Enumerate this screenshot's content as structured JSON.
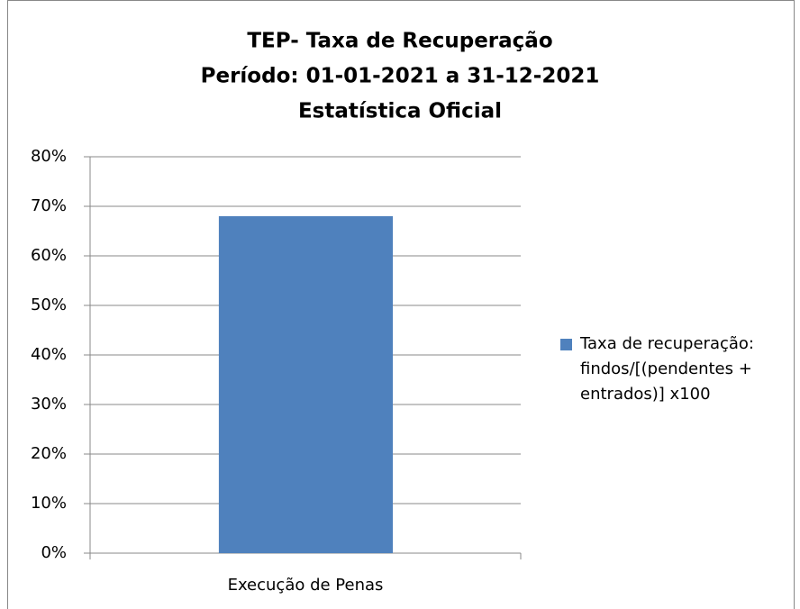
{
  "chart_data": {
    "type": "bar",
    "title": [
      "TEP- Taxa de Recuperação",
      "Período: 01-01-2021 a 31-12-2021",
      "Estatística Oficial"
    ],
    "categories": [
      "Execução de Penas"
    ],
    "series": [
      {
        "name": "Taxa de recuperação: findos/[(pendentes + entrados)] x100",
        "color": "#4f81bd",
        "values": [
          68
        ]
      }
    ],
    "ylim": [
      0,
      80
    ],
    "yticks": [
      {
        "value": 0,
        "label": "0%"
      },
      {
        "value": 10,
        "label": "10%"
      },
      {
        "value": 20,
        "label": "20%"
      },
      {
        "value": 30,
        "label": "30%"
      },
      {
        "value": 40,
        "label": "40%"
      },
      {
        "value": 50,
        "label": "50%"
      },
      {
        "value": 60,
        "label": "60%"
      },
      {
        "value": 70,
        "label": "70%"
      },
      {
        "value": 80,
        "label": "80%"
      }
    ],
    "grid": true,
    "legend": "right"
  }
}
